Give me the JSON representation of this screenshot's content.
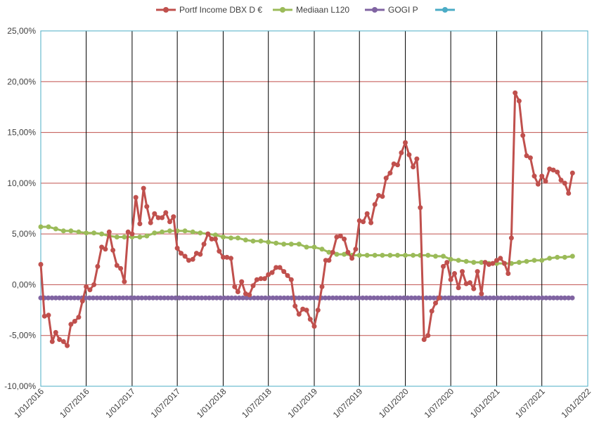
{
  "chart_data": {
    "type": "line",
    "title": "",
    "xlabel": "",
    "ylabel": "",
    "ylim": [
      -0.1,
      0.25
    ],
    "y_ticks": [
      -0.1,
      -0.05,
      0.0,
      0.05,
      0.1,
      0.15,
      0.2,
      0.25
    ],
    "y_tick_labels": [
      "-10,00%",
      "-5,00%",
      "0,00%",
      "5,00%",
      "10,00%",
      "15,00%",
      "20,00%",
      "25,00%"
    ],
    "x_range": [
      "2016-01-01",
      "2022-01-01"
    ],
    "x_ticks": [
      "2016-01-01",
      "2016-07-01",
      "2017-01-01",
      "2017-07-01",
      "2018-01-01",
      "2018-07-01",
      "2019-01-01",
      "2019-07-01",
      "2020-01-01",
      "2020-07-01",
      "2021-01-01",
      "2021-07-01",
      "2022-01-01"
    ],
    "x_tick_labels": [
      "1/01/2016",
      "1/07/2016",
      "1/01/2017",
      "1/07/2017",
      "1/01/2018",
      "1/07/2018",
      "1/01/2019",
      "1/07/2019",
      "1/01/2020",
      "1/07/2020",
      "1/01/2021",
      "1/07/2021",
      "1/01/2022"
    ],
    "grid": true,
    "legend_position": "top",
    "series": [
      {
        "name": "Portf Income DBX D €",
        "color": "#c0504d",
        "points": [
          [
            "2016-01-01",
            0.02
          ],
          [
            "2016-01-16",
            -0.031
          ],
          [
            "2016-02-01",
            -0.03
          ],
          [
            "2016-02-16",
            -0.056
          ],
          [
            "2016-03-01",
            -0.047
          ],
          [
            "2016-03-16",
            -0.054
          ],
          [
            "2016-04-01",
            -0.056
          ],
          [
            "2016-04-16",
            -0.06
          ],
          [
            "2016-05-01",
            -0.039
          ],
          [
            "2016-05-16",
            -0.036
          ],
          [
            "2016-06-01",
            -0.032
          ],
          [
            "2016-06-16",
            -0.016
          ],
          [
            "2016-07-01",
            -0.002
          ],
          [
            "2016-07-16",
            -0.005
          ],
          [
            "2016-08-01",
            0.0
          ],
          [
            "2016-08-16",
            0.018
          ],
          [
            "2016-09-01",
            0.037
          ],
          [
            "2016-09-16",
            0.035
          ],
          [
            "2016-10-01",
            0.052
          ],
          [
            "2016-10-16",
            0.034
          ],
          [
            "2016-11-01",
            0.019
          ],
          [
            "2016-11-16",
            0.016
          ],
          [
            "2016-12-01",
            0.003
          ],
          [
            "2016-12-16",
            0.052
          ],
          [
            "2017-01-01",
            0.05
          ],
          [
            "2017-01-16",
            0.086
          ],
          [
            "2017-02-01",
            0.06
          ],
          [
            "2017-02-16",
            0.095
          ],
          [
            "2017-03-01",
            0.077
          ],
          [
            "2017-03-16",
            0.061
          ],
          [
            "2017-04-01",
            0.07
          ],
          [
            "2017-04-16",
            0.066
          ],
          [
            "2017-05-01",
            0.066
          ],
          [
            "2017-05-16",
            0.071
          ],
          [
            "2017-06-01",
            0.062
          ],
          [
            "2017-06-16",
            0.067
          ],
          [
            "2017-07-01",
            0.036
          ],
          [
            "2017-07-16",
            0.031
          ],
          [
            "2017-08-01",
            0.028
          ],
          [
            "2017-08-16",
            0.024
          ],
          [
            "2017-09-01",
            0.025
          ],
          [
            "2017-09-16",
            0.031
          ],
          [
            "2017-10-01",
            0.03
          ],
          [
            "2017-10-16",
            0.04
          ],
          [
            "2017-11-01",
            0.05
          ],
          [
            "2017-11-16",
            0.045
          ],
          [
            "2017-12-01",
            0.045
          ],
          [
            "2017-12-16",
            0.033
          ],
          [
            "2018-01-01",
            0.027
          ],
          [
            "2018-01-16",
            0.027
          ],
          [
            "2018-02-01",
            0.026
          ],
          [
            "2018-02-16",
            -0.002
          ],
          [
            "2018-03-01",
            -0.007
          ],
          [
            "2018-03-16",
            0.003
          ],
          [
            "2018-04-01",
            -0.009
          ],
          [
            "2018-04-16",
            -0.01
          ],
          [
            "2018-05-01",
            -0.001
          ],
          [
            "2018-05-16",
            0.005
          ],
          [
            "2018-06-01",
            0.006
          ],
          [
            "2018-06-16",
            0.006
          ],
          [
            "2018-07-01",
            0.01
          ],
          [
            "2018-07-16",
            0.012
          ],
          [
            "2018-08-01",
            0.017
          ],
          [
            "2018-08-16",
            0.017
          ],
          [
            "2018-09-01",
            0.013
          ],
          [
            "2018-09-16",
            0.009
          ],
          [
            "2018-10-01",
            0.005
          ],
          [
            "2018-10-16",
            -0.021
          ],
          [
            "2018-11-01",
            -0.029
          ],
          [
            "2018-11-16",
            -0.024
          ],
          [
            "2018-12-01",
            -0.025
          ],
          [
            "2018-12-16",
            -0.034
          ],
          [
            "2019-01-01",
            -0.041
          ],
          [
            "2019-01-16",
            -0.025
          ],
          [
            "2019-02-01",
            -0.002
          ],
          [
            "2019-02-16",
            0.024
          ],
          [
            "2019-03-01",
            0.024
          ],
          [
            "2019-03-16",
            0.032
          ],
          [
            "2019-04-01",
            0.047
          ],
          [
            "2019-04-16",
            0.048
          ],
          [
            "2019-05-01",
            0.045
          ],
          [
            "2019-05-16",
            0.032
          ],
          [
            "2019-06-01",
            0.026
          ],
          [
            "2019-06-16",
            0.035
          ],
          [
            "2019-07-01",
            0.063
          ],
          [
            "2019-07-16",
            0.062
          ],
          [
            "2019-08-01",
            0.07
          ],
          [
            "2019-08-16",
            0.061
          ],
          [
            "2019-09-01",
            0.079
          ],
          [
            "2019-09-16",
            0.088
          ],
          [
            "2019-10-01",
            0.087
          ],
          [
            "2019-10-16",
            0.105
          ],
          [
            "2019-11-01",
            0.11
          ],
          [
            "2019-11-16",
            0.119
          ],
          [
            "2019-12-01",
            0.118
          ],
          [
            "2019-12-16",
            0.13
          ],
          [
            "2020-01-01",
            0.14
          ],
          [
            "2020-01-16",
            0.128
          ],
          [
            "2020-02-01",
            0.116
          ],
          [
            "2020-02-16",
            0.124
          ],
          [
            "2020-03-01",
            0.076
          ],
          [
            "2020-03-16",
            -0.054
          ],
          [
            "2020-04-01",
            -0.05
          ],
          [
            "2020-04-16",
            -0.026
          ],
          [
            "2020-05-01",
            -0.018
          ],
          [
            "2020-05-16",
            -0.013
          ],
          [
            "2020-06-01",
            0.018
          ],
          [
            "2020-06-16",
            0.022
          ],
          [
            "2020-07-01",
            0.005
          ],
          [
            "2020-07-16",
            0.011
          ],
          [
            "2020-08-01",
            -0.003
          ],
          [
            "2020-08-16",
            0.013
          ],
          [
            "2020-09-01",
            0.001
          ],
          [
            "2020-09-16",
            0.002
          ],
          [
            "2020-10-01",
            -0.004
          ],
          [
            "2020-10-16",
            0.013
          ],
          [
            "2020-11-01",
            -0.009
          ],
          [
            "2020-11-16",
            0.022
          ],
          [
            "2020-12-01",
            0.02
          ],
          [
            "2020-12-16",
            0.021
          ],
          [
            "2021-01-01",
            0.024
          ],
          [
            "2021-01-16",
            0.026
          ],
          [
            "2021-02-01",
            0.021
          ],
          [
            "2021-02-16",
            0.011
          ],
          [
            "2021-03-01",
            0.046
          ],
          [
            "2021-03-16",
            0.189
          ],
          [
            "2021-04-01",
            0.181
          ],
          [
            "2021-04-16",
            0.147
          ],
          [
            "2021-05-01",
            0.127
          ],
          [
            "2021-05-16",
            0.125
          ],
          [
            "2021-06-01",
            0.107
          ],
          [
            "2021-06-16",
            0.099
          ],
          [
            "2021-07-01",
            0.107
          ],
          [
            "2021-07-16",
            0.102
          ],
          [
            "2021-08-01",
            0.114
          ],
          [
            "2021-08-16",
            0.113
          ],
          [
            "2021-09-01",
            0.111
          ],
          [
            "2021-09-16",
            0.103
          ],
          [
            "2021-10-01",
            0.1
          ],
          [
            "2021-10-16",
            0.09
          ],
          [
            "2021-11-01",
            0.11
          ]
        ]
      },
      {
        "name": "Mediaan L120",
        "color": "#9bbb59",
        "points": [
          [
            "2016-01-01",
            0.057
          ],
          [
            "2016-02-01",
            0.057
          ],
          [
            "2016-03-01",
            0.055
          ],
          [
            "2016-04-01",
            0.053
          ],
          [
            "2016-05-01",
            0.053
          ],
          [
            "2016-06-01",
            0.052
          ],
          [
            "2016-07-01",
            0.051
          ],
          [
            "2016-08-01",
            0.051
          ],
          [
            "2016-09-01",
            0.05
          ],
          [
            "2016-10-01",
            0.048
          ],
          [
            "2016-11-01",
            0.047
          ],
          [
            "2016-12-01",
            0.047
          ],
          [
            "2017-01-01",
            0.047
          ],
          [
            "2017-02-01",
            0.047
          ],
          [
            "2017-03-01",
            0.048
          ],
          [
            "2017-04-01",
            0.051
          ],
          [
            "2017-05-01",
            0.052
          ],
          [
            "2017-06-01",
            0.053
          ],
          [
            "2017-07-01",
            0.053
          ],
          [
            "2017-08-01",
            0.053
          ],
          [
            "2017-09-01",
            0.052
          ],
          [
            "2017-10-01",
            0.051
          ],
          [
            "2017-11-01",
            0.05
          ],
          [
            "2017-12-01",
            0.049
          ],
          [
            "2018-01-01",
            0.047
          ],
          [
            "2018-02-01",
            0.046
          ],
          [
            "2018-03-01",
            0.046
          ],
          [
            "2018-04-01",
            0.044
          ],
          [
            "2018-05-01",
            0.043
          ],
          [
            "2018-06-01",
            0.043
          ],
          [
            "2018-07-01",
            0.042
          ],
          [
            "2018-08-01",
            0.041
          ],
          [
            "2018-09-01",
            0.04
          ],
          [
            "2018-10-01",
            0.04
          ],
          [
            "2018-11-01",
            0.04
          ],
          [
            "2018-12-01",
            0.037
          ],
          [
            "2019-01-01",
            0.037
          ],
          [
            "2019-02-01",
            0.035
          ],
          [
            "2019-03-01",
            0.032
          ],
          [
            "2019-04-01",
            0.03
          ],
          [
            "2019-05-01",
            0.03
          ],
          [
            "2019-06-01",
            0.029
          ],
          [
            "2019-07-01",
            0.029
          ],
          [
            "2019-08-01",
            0.029
          ],
          [
            "2019-09-01",
            0.029
          ],
          [
            "2019-10-01",
            0.029
          ],
          [
            "2019-11-01",
            0.029
          ],
          [
            "2019-12-01",
            0.029
          ],
          [
            "2020-01-01",
            0.029
          ],
          [
            "2020-02-01",
            0.029
          ],
          [
            "2020-03-01",
            0.029
          ],
          [
            "2020-04-01",
            0.029
          ],
          [
            "2020-05-01",
            0.028
          ],
          [
            "2020-06-01",
            0.028
          ],
          [
            "2020-07-01",
            0.025
          ],
          [
            "2020-08-01",
            0.024
          ],
          [
            "2020-09-01",
            0.023
          ],
          [
            "2020-10-01",
            0.022
          ],
          [
            "2020-11-01",
            0.022
          ],
          [
            "2020-12-01",
            0.021
          ],
          [
            "2021-01-01",
            0.021
          ],
          [
            "2021-02-01",
            0.021
          ],
          [
            "2021-03-01",
            0.021
          ],
          [
            "2021-04-01",
            0.022
          ],
          [
            "2021-05-01",
            0.023
          ],
          [
            "2021-06-01",
            0.024
          ],
          [
            "2021-07-01",
            0.024
          ],
          [
            "2021-08-01",
            0.026
          ],
          [
            "2021-09-01",
            0.027
          ],
          [
            "2021-10-01",
            0.027
          ],
          [
            "2021-11-01",
            0.028
          ]
        ]
      },
      {
        "name": "GOGI P",
        "color": "#8064a2",
        "points": [
          [
            "2016-01-01",
            -0.013
          ],
          [
            "2021-11-01",
            -0.013
          ]
        ],
        "marker_step_days": 15
      },
      {
        "name": "",
        "color": "#4bacc6",
        "points": []
      }
    ]
  }
}
